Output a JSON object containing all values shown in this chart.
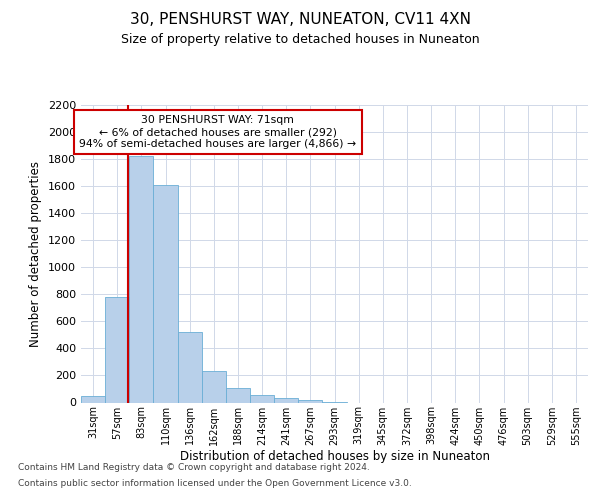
{
  "title1": "30, PENSHURST WAY, NUNEATON, CV11 4XN",
  "title2": "Size of property relative to detached houses in Nuneaton",
  "xlabel": "Distribution of detached houses by size in Nuneaton",
  "ylabel": "Number of detached properties",
  "bin_labels": [
    "31sqm",
    "57sqm",
    "83sqm",
    "110sqm",
    "136sqm",
    "162sqm",
    "188sqm",
    "214sqm",
    "241sqm",
    "267sqm",
    "293sqm",
    "319sqm",
    "345sqm",
    "372sqm",
    "398sqm",
    "424sqm",
    "450sqm",
    "476sqm",
    "503sqm",
    "529sqm",
    "555sqm"
  ],
  "bar_values": [
    45,
    780,
    1820,
    1610,
    520,
    230,
    105,
    55,
    30,
    18,
    4,
    0,
    0,
    0,
    0,
    0,
    0,
    0,
    0,
    0,
    0
  ],
  "bar_color": "#b8d0ea",
  "bar_edge_color": "#6aaed6",
  "vline_x": 1.45,
  "vline_color": "#cc0000",
  "annotation_text": "30 PENSHURST WAY: 71sqm\n← 6% of detached houses are smaller (292)\n94% of semi-detached houses are larger (4,866) →",
  "annotation_box_color": "#ffffff",
  "annotation_box_edge": "#cc0000",
  "ylim": [
    0,
    2200
  ],
  "yticks": [
    0,
    200,
    400,
    600,
    800,
    1000,
    1200,
    1400,
    1600,
    1800,
    2000,
    2200
  ],
  "footer1": "Contains HM Land Registry data © Crown copyright and database right 2024.",
  "footer2": "Contains public sector information licensed under the Open Government Licence v3.0.",
  "bg_color": "#ffffff",
  "grid_color": "#d0d8e8"
}
